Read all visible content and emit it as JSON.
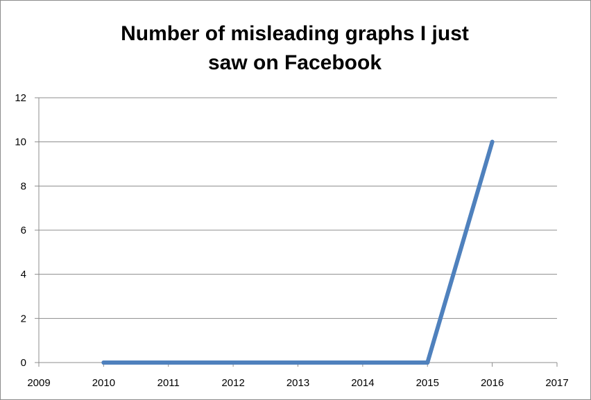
{
  "chart_data": {
    "type": "line",
    "title_lines": [
      "Number of misleading graphs I just",
      "saw on Facebook"
    ],
    "xlabel": "",
    "ylabel": "",
    "x_ticks": [
      "2009",
      "2010",
      "2011",
      "2012",
      "2013",
      "2014",
      "2015",
      "2016",
      "2017"
    ],
    "y_ticks": [
      "0",
      "2",
      "4",
      "6",
      "8",
      "10",
      "12"
    ],
    "xlim": [
      2009,
      2017
    ],
    "ylim": [
      0,
      12
    ],
    "grid": true,
    "legend": "none",
    "series": [
      {
        "x": [
          2010,
          2011,
          2012,
          2013,
          2014,
          2015,
          2016
        ],
        "values": [
          0,
          0,
          0,
          0,
          0,
          0,
          10
        ],
        "color": "#4f81bd"
      }
    ]
  }
}
